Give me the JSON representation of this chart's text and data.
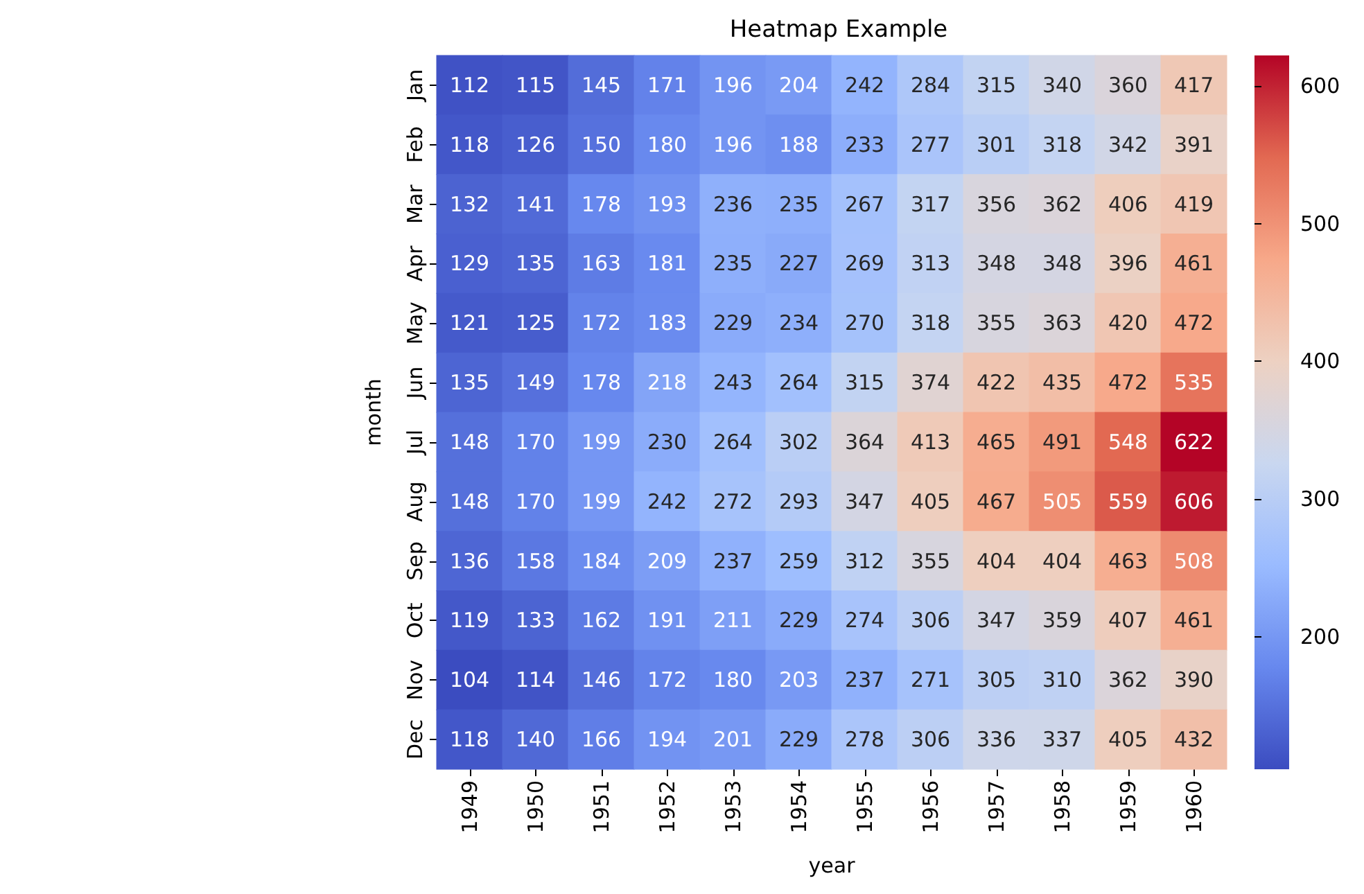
{
  "chart_data": {
    "type": "heatmap",
    "title": "Heatmap Example",
    "xlabel": "year",
    "ylabel": "month",
    "categories": [
      "1949",
      "1950",
      "1951",
      "1952",
      "1953",
      "1954",
      "1955",
      "1956",
      "1957",
      "1958",
      "1959",
      "1960"
    ],
    "y_categories": [
      "Jan",
      "Feb",
      "Mar",
      "Apr",
      "May",
      "Jun",
      "Jul",
      "Aug",
      "Sep",
      "Oct",
      "Nov",
      "Dec"
    ],
    "cells": [
      [
        112,
        115,
        145,
        171,
        196,
        204,
        242,
        284,
        315,
        340,
        360,
        417
      ],
      [
        118,
        126,
        150,
        180,
        196,
        188,
        233,
        277,
        301,
        318,
        342,
        391
      ],
      [
        132,
        141,
        178,
        193,
        236,
        235,
        267,
        317,
        356,
        362,
        406,
        419
      ],
      [
        129,
        135,
        163,
        181,
        235,
        227,
        269,
        313,
        348,
        348,
        396,
        461
      ],
      [
        121,
        125,
        172,
        183,
        229,
        234,
        270,
        318,
        355,
        363,
        420,
        472
      ],
      [
        135,
        149,
        178,
        218,
        243,
        264,
        315,
        374,
        422,
        435,
        472,
        535
      ],
      [
        148,
        170,
        199,
        230,
        264,
        302,
        364,
        413,
        465,
        491,
        548,
        622
      ],
      [
        148,
        170,
        199,
        242,
        272,
        293,
        347,
        405,
        467,
        505,
        559,
        606
      ],
      [
        136,
        158,
        184,
        209,
        237,
        259,
        312,
        355,
        404,
        404,
        463,
        508
      ],
      [
        119,
        133,
        162,
        191,
        211,
        229,
        274,
        306,
        347,
        359,
        407,
        461
      ],
      [
        104,
        114,
        146,
        172,
        180,
        203,
        237,
        271,
        305,
        310,
        362,
        390
      ],
      [
        118,
        140,
        166,
        194,
        201,
        229,
        278,
        306,
        336,
        337,
        405,
        432
      ]
    ],
    "data_labels": true,
    "clim": [
      104,
      622
    ],
    "cticks": [
      200,
      300,
      400,
      500,
      600
    ]
  }
}
